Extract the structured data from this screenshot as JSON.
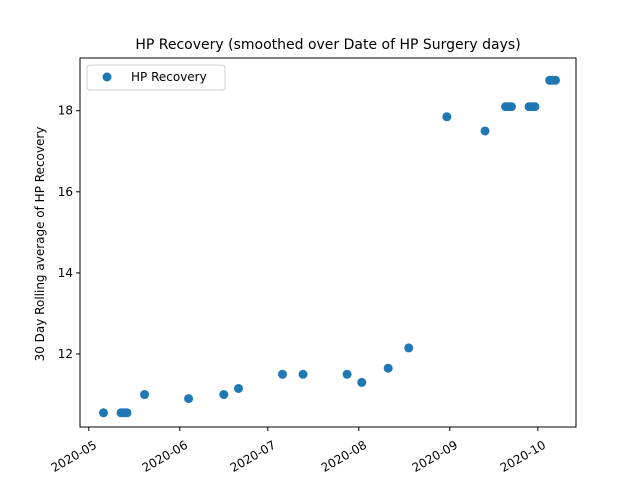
{
  "chart_data": {
    "type": "scatter",
    "title": "HP Recovery (smoothed over Date of HP Surgery days)",
    "xlabel": "",
    "ylabel": "30 Day Rolling average of HP Recovery",
    "x_axis_type": "date",
    "xlim": [
      "2020-04-28",
      "2020-10-14"
    ],
    "ylim": [
      10.2,
      19.3
    ],
    "x_ticks": [
      "2020-05",
      "2020-06",
      "2020-07",
      "2020-08",
      "2020-09",
      "2020-10"
    ],
    "y_ticks": [
      12,
      14,
      16,
      18
    ],
    "grid": false,
    "legend_position": "upper-left",
    "color": "#1f77b4",
    "series": [
      {
        "name": "HP Recovery",
        "points": [
          {
            "x": "2020-05-06",
            "y": 10.55
          },
          {
            "x": "2020-05-12",
            "y": 10.55
          },
          {
            "x": "2020-05-13",
            "y": 10.55
          },
          {
            "x": "2020-05-14",
            "y": 10.55
          },
          {
            "x": "2020-05-20",
            "y": 11.0
          },
          {
            "x": "2020-06-04",
            "y": 10.9
          },
          {
            "x": "2020-06-16",
            "y": 11.0
          },
          {
            "x": "2020-06-21",
            "y": 11.15
          },
          {
            "x": "2020-07-06",
            "y": 11.5
          },
          {
            "x": "2020-07-13",
            "y": 11.5
          },
          {
            "x": "2020-07-28",
            "y": 11.5
          },
          {
            "x": "2020-08-02",
            "y": 11.3
          },
          {
            "x": "2020-08-11",
            "y": 11.65
          },
          {
            "x": "2020-08-18",
            "y": 12.15
          },
          {
            "x": "2020-08-31",
            "y": 17.85
          },
          {
            "x": "2020-09-13",
            "y": 17.5
          },
          {
            "x": "2020-09-20",
            "y": 18.1
          },
          {
            "x": "2020-09-21",
            "y": 18.1
          },
          {
            "x": "2020-09-22",
            "y": 18.1
          },
          {
            "x": "2020-09-28",
            "y": 18.1
          },
          {
            "x": "2020-09-29",
            "y": 18.1
          },
          {
            "x": "2020-09-30",
            "y": 18.1
          },
          {
            "x": "2020-10-05",
            "y": 18.75
          },
          {
            "x": "2020-10-06",
            "y": 18.75
          },
          {
            "x": "2020-10-07",
            "y": 18.75
          }
        ]
      }
    ]
  }
}
